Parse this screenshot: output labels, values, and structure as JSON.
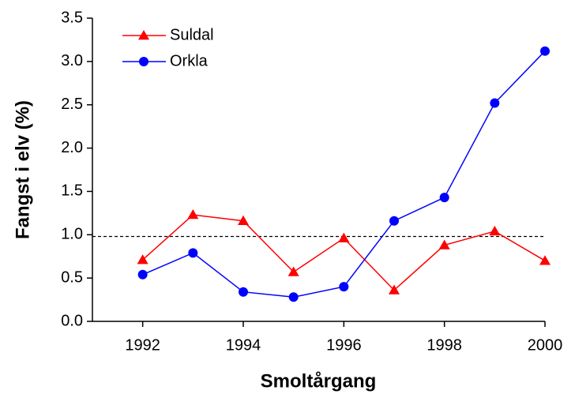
{
  "chart_data": {
    "type": "line",
    "xlabel": "Smoltårgang",
    "ylabel": "Fangst i elv (%)",
    "x": [
      1992,
      1993,
      1994,
      1995,
      1996,
      1997,
      1998,
      1999,
      2000
    ],
    "series": [
      {
        "name": "Suldal",
        "color": "#ff0000",
        "marker": "triangle",
        "values": [
          0.71,
          1.23,
          1.16,
          0.57,
          0.96,
          0.36,
          0.88,
          1.04,
          0.7
        ]
      },
      {
        "name": "Orkla",
        "color": "#0000ff",
        "marker": "circle",
        "values": [
          0.54,
          0.79,
          0.34,
          0.28,
          0.4,
          1.16,
          1.43,
          2.52,
          3.12
        ]
      }
    ],
    "hline": 0.98,
    "xlim": [
      1991,
      2000
    ],
    "xticks": [
      1992,
      1994,
      1996,
      1998,
      2000
    ],
    "ylim": [
      0,
      3.5
    ],
    "yticks": [
      {
        "value": 0,
        "label": "0.0"
      },
      0.5,
      {
        "value": 1,
        "label": "1.0"
      },
      1.5,
      {
        "value": 2,
        "label": "2.0"
      },
      2.5,
      {
        "value": 3,
        "label": "3.0"
      },
      3.5
    ],
    "legend": "upper left",
    "grid": false
  }
}
